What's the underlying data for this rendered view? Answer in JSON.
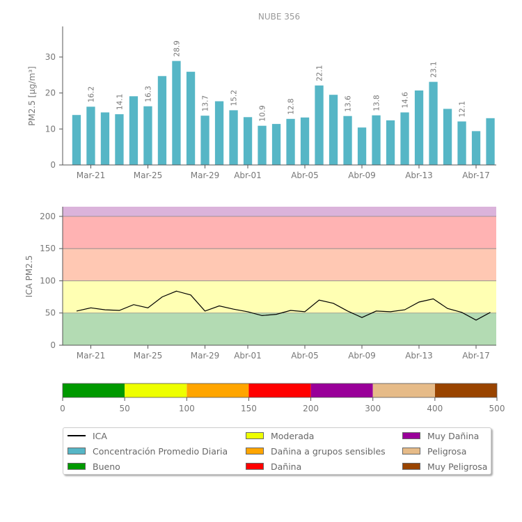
{
  "chart_data": [
    {
      "type": "bar",
      "title": "NUBE 356",
      "ylabel": "PM2.5 [μg/m³]",
      "ylim": [
        0,
        38.5
      ],
      "yticks": [
        0,
        10,
        20,
        30
      ],
      "grid": false,
      "bar_color": "#56b6c6",
      "x_tick_labels": [
        "Mar-21",
        "Mar-25",
        "Mar-29",
        "Abr-01",
        "Abr-05",
        "Abr-09",
        "Abr-13",
        "Abr-17"
      ],
      "x_tick_day_index": [
        1,
        5,
        9,
        12,
        16,
        20,
        24,
        28
      ],
      "values": [
        13.9,
        16.2,
        14.6,
        14.1,
        19.1,
        16.3,
        24.7,
        28.9,
        25.9,
        13.7,
        17.7,
        15.2,
        13.3,
        10.9,
        11.4,
        12.8,
        13.2,
        22.1,
        19.5,
        13.6,
        10.4,
        13.8,
        12.4,
        14.6,
        20.7,
        23.1,
        15.6,
        12.1,
        9.4,
        13.0
      ],
      "labeled_bars": [
        {
          "index": 1,
          "label": "16.2"
        },
        {
          "index": 3,
          "label": "14.1"
        },
        {
          "index": 5,
          "label": "16.3"
        },
        {
          "index": 7,
          "label": "28.9"
        },
        {
          "index": 9,
          "label": "13.7"
        },
        {
          "index": 11,
          "label": "15.2"
        },
        {
          "index": 13,
          "label": "10.9"
        },
        {
          "index": 15,
          "label": "12.8"
        },
        {
          "index": 17,
          "label": "22.1"
        },
        {
          "index": 19,
          "label": "13.6"
        },
        {
          "index": 21,
          "label": "13.8"
        },
        {
          "index": 23,
          "label": "14.6"
        },
        {
          "index": 25,
          "label": "23.1"
        },
        {
          "index": 27,
          "label": "12.1"
        }
      ]
    },
    {
      "type": "line",
      "ylabel": "ICA PM2.5",
      "ylim": [
        0,
        215
      ],
      "yticks": [
        0,
        50,
        100,
        150,
        200
      ],
      "line_color": "#000000",
      "x_tick_labels": [
        "Mar-21",
        "Mar-25",
        "Mar-29",
        "Abr-01",
        "Abr-05",
        "Abr-09",
        "Abr-13",
        "Abr-17"
      ],
      "x_tick_day_index": [
        1,
        5,
        9,
        12,
        16,
        20,
        24,
        28
      ],
      "values": [
        53,
        58,
        55,
        54,
        63,
        58,
        75,
        84,
        78,
        53,
        61,
        56,
        52,
        46,
        48,
        54,
        52,
        70,
        65,
        53,
        43,
        53,
        52,
        55,
        67,
        72,
        57,
        51,
        39,
        51
      ],
      "bands": [
        {
          "from": 0,
          "to": 50,
          "color": "#b3dbb3"
        },
        {
          "from": 50,
          "to": 100,
          "color": "#ffffb3"
        },
        {
          "from": 100,
          "to": 150,
          "color": "#ffc8b3"
        },
        {
          "from": 150,
          "to": 200,
          "color": "#ffb3b3"
        },
        {
          "from": 200,
          "to": 215,
          "color": "#dbb3db"
        }
      ]
    },
    {
      "type": "colorbar",
      "ticks": [
        "0",
        "50",
        "100",
        "150",
        "200",
        "300",
        "400",
        "500"
      ],
      "segments": [
        {
          "from": 0,
          "to": 50,
          "color": "#009900"
        },
        {
          "from": 50,
          "to": 100,
          "color": "#eeff00"
        },
        {
          "from": 100,
          "to": 150,
          "color": "#ffa500"
        },
        {
          "from": 150,
          "to": 200,
          "color": "#ff0000"
        },
        {
          "from": 200,
          "to": 300,
          "color": "#990099"
        },
        {
          "from": 300,
          "to": 400,
          "color": "#e6bb88"
        },
        {
          "from": 400,
          "to": 500,
          "color": "#994400"
        }
      ]
    }
  ],
  "legend": {
    "placement": "bottom",
    "items": [
      {
        "label": "ICA",
        "kind": "line",
        "color": "#000000"
      },
      {
        "label": "Concentración Promedio Diaria",
        "kind": "box",
        "color": "#56b6c6"
      },
      {
        "label": "Bueno",
        "kind": "box",
        "color": "#009900"
      },
      {
        "label": "Moderada",
        "kind": "box",
        "color": "#eeff00"
      },
      {
        "label": "Dañina a grupos sensibles",
        "kind": "box",
        "color": "#ffa500"
      },
      {
        "label": "Dañina",
        "kind": "box",
        "color": "#ff0000"
      },
      {
        "label": "Muy Dañina",
        "kind": "box",
        "color": "#990099"
      },
      {
        "label": "Peligrosa",
        "kind": "box",
        "color": "#e6bb88"
      },
      {
        "label": "Muy Peligrosa",
        "kind": "box",
        "color": "#994400"
      }
    ]
  }
}
